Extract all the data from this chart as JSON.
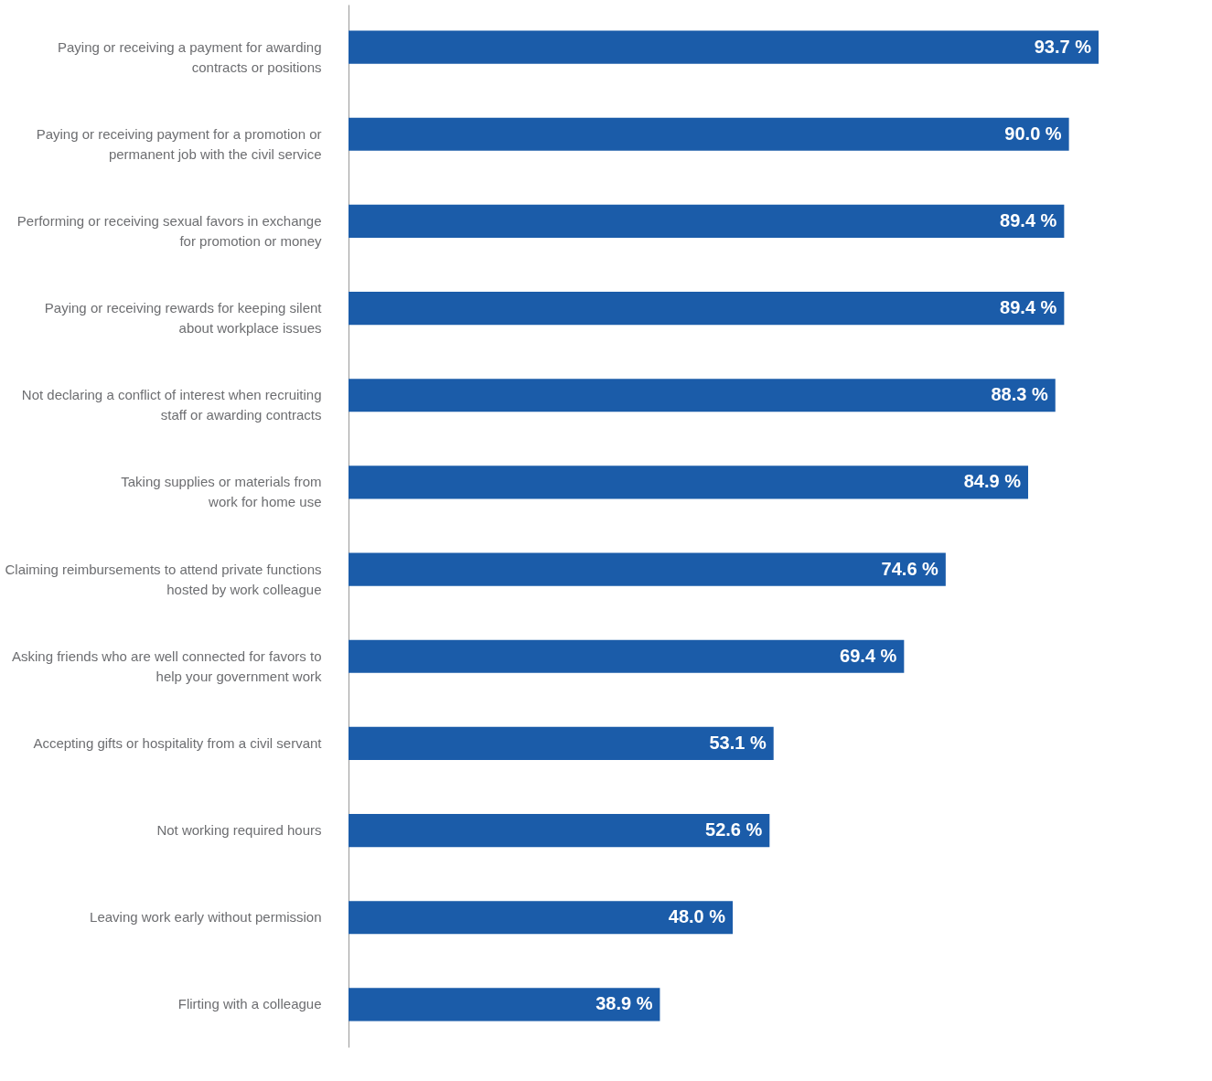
{
  "chart_data": {
    "type": "bar",
    "orientation": "horizontal",
    "color": "#1b5ca9",
    "categories": [
      "Paying or receiving a payment for awarding\ncontracts or  positions",
      "Paying or receiving payment for a promotion or\npermanent job with the civil service",
      "Performing or receiving sexual favors in exchange\nfor promotion or money",
      "Paying or receiving rewards for keeping silent\nabout workplace issues",
      "Not declaring a conflict of interest when recruiting\nstaff or  awarding contracts",
      "Taking supplies or materials from\nwork for home use",
      "Claiming reimbursements to attend private functions\nhosted  by work colleague",
      "Asking friends who are well connected for favors to\nhelp your government work",
      "Accepting gifts or hospitality from a civil servant",
      "Not working required hours",
      "Leaving work early without permission",
      "Flirting with a colleague"
    ],
    "values": [
      93.7,
      90.0,
      89.4,
      89.4,
      88.3,
      84.9,
      74.6,
      69.4,
      53.1,
      52.6,
      48.0,
      38.9
    ],
    "value_labels": [
      "93.7 %",
      "90.0 %",
      "89.4 %",
      "89.4 %",
      "88.3 %",
      "84.9 %",
      "74.6 %",
      "69.4 %",
      "53.1 %",
      "52.6 %",
      "48.0 %",
      "38.9 %"
    ],
    "grid": false
  }
}
